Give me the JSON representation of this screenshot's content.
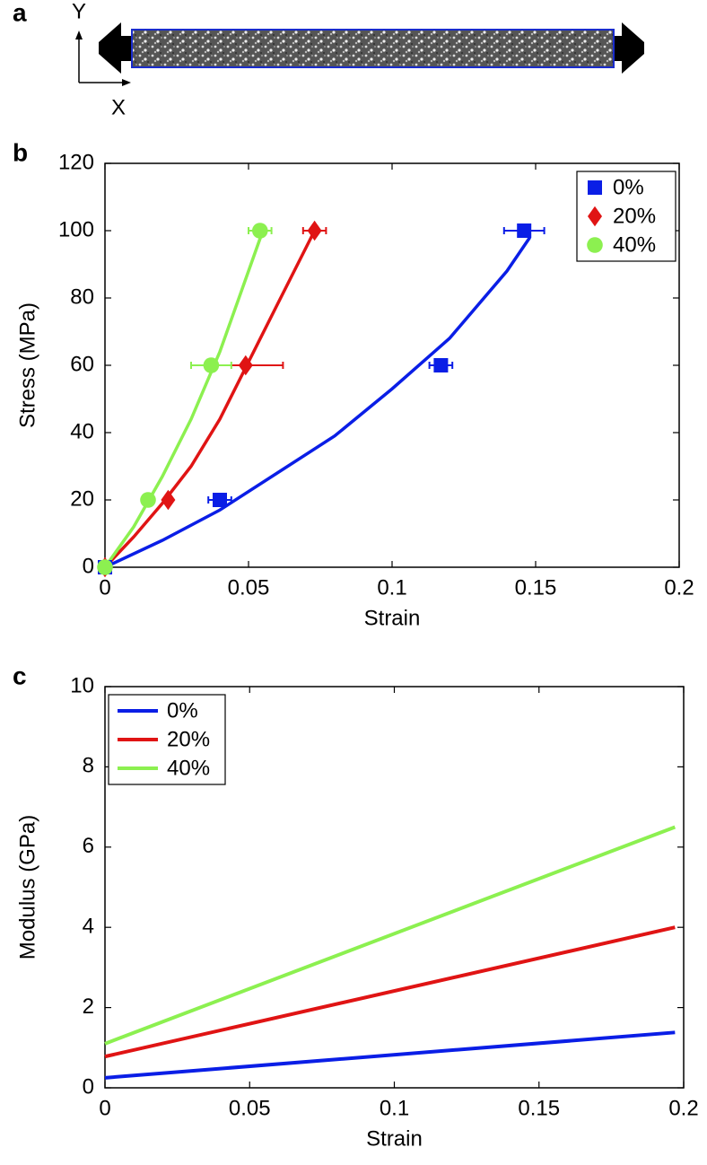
{
  "panel_a": {
    "label": "a",
    "y_axis": "Y",
    "x_axis": "X"
  },
  "chart_data": [
    {
      "type": "scatter",
      "panel_label": "b",
      "x_label": "Strain",
      "y_label": "Stress (MPa)",
      "xlim": [
        0,
        0.2
      ],
      "xticks": [
        0,
        0.05,
        0.1,
        0.15,
        0.2
      ],
      "ylim": [
        0,
        120
      ],
      "yticks": [
        0,
        20,
        40,
        60,
        80,
        100,
        120
      ],
      "legend": "top-right",
      "series": [
        {
          "name": "0%",
          "color": "#0a1ee6",
          "marker": "square",
          "x": [
            0,
            0.04,
            0.117,
            0.146
          ],
          "values": [
            0,
            20,
            60,
            100
          ],
          "xerr": [
            0,
            0.004,
            0.004,
            0.007
          ],
          "fit": {
            "x": [
              0,
              0.02,
              0.04,
              0.06,
              0.08,
              0.1,
              0.12,
              0.14,
              0.148
            ],
            "y": [
              0,
              8,
              17,
              28,
              39,
              53,
              68,
              88,
              98
            ]
          }
        },
        {
          "name": "20%",
          "color": "#e01414",
          "marker": "diamond",
          "x": [
            0,
            0.022,
            0.049,
            0.073
          ],
          "values": [
            0,
            20,
            60,
            100
          ],
          "xerr": [
            0,
            0.001,
            0.013,
            0.004
          ],
          "fit": {
            "x": [
              0,
              0.01,
              0.02,
              0.03,
              0.04,
              0.05,
              0.06,
              0.073
            ],
            "y": [
              0,
              9,
              19,
              30,
              44,
              61,
              78,
              100
            ]
          }
        },
        {
          "name": "40%",
          "color": "#8cf050",
          "marker": "circle",
          "x": [
            0,
            0.015,
            0.037,
            0.054
          ],
          "values": [
            0,
            20,
            60,
            100
          ],
          "xerr": [
            0,
            0.001,
            0.007,
            0.004
          ],
          "fit": {
            "x": [
              0,
              0.01,
              0.02,
              0.03,
              0.04,
              0.055
            ],
            "y": [
              0,
              12,
              27,
              44,
              64,
              100
            ]
          }
        }
      ]
    },
    {
      "type": "line",
      "panel_label": "c",
      "x_label": "Strain",
      "y_label": "Modulus (GPa)",
      "xlim": [
        0,
        0.2
      ],
      "xticks": [
        0,
        0.05,
        0.1,
        0.15,
        0.2
      ],
      "ylim": [
        0,
        10
      ],
      "yticks": [
        0,
        2,
        4,
        6,
        8,
        10
      ],
      "legend": "top-left",
      "x": [
        0,
        0.197
      ],
      "series": [
        {
          "name": "0%",
          "color": "#0a1ee6",
          "values": [
            0.25,
            1.38
          ]
        },
        {
          "name": "20%",
          "color": "#e01414",
          "values": [
            0.78,
            4.0
          ]
        },
        {
          "name": "40%",
          "color": "#8cf050",
          "values": [
            1.1,
            6.5
          ]
        }
      ]
    }
  ]
}
